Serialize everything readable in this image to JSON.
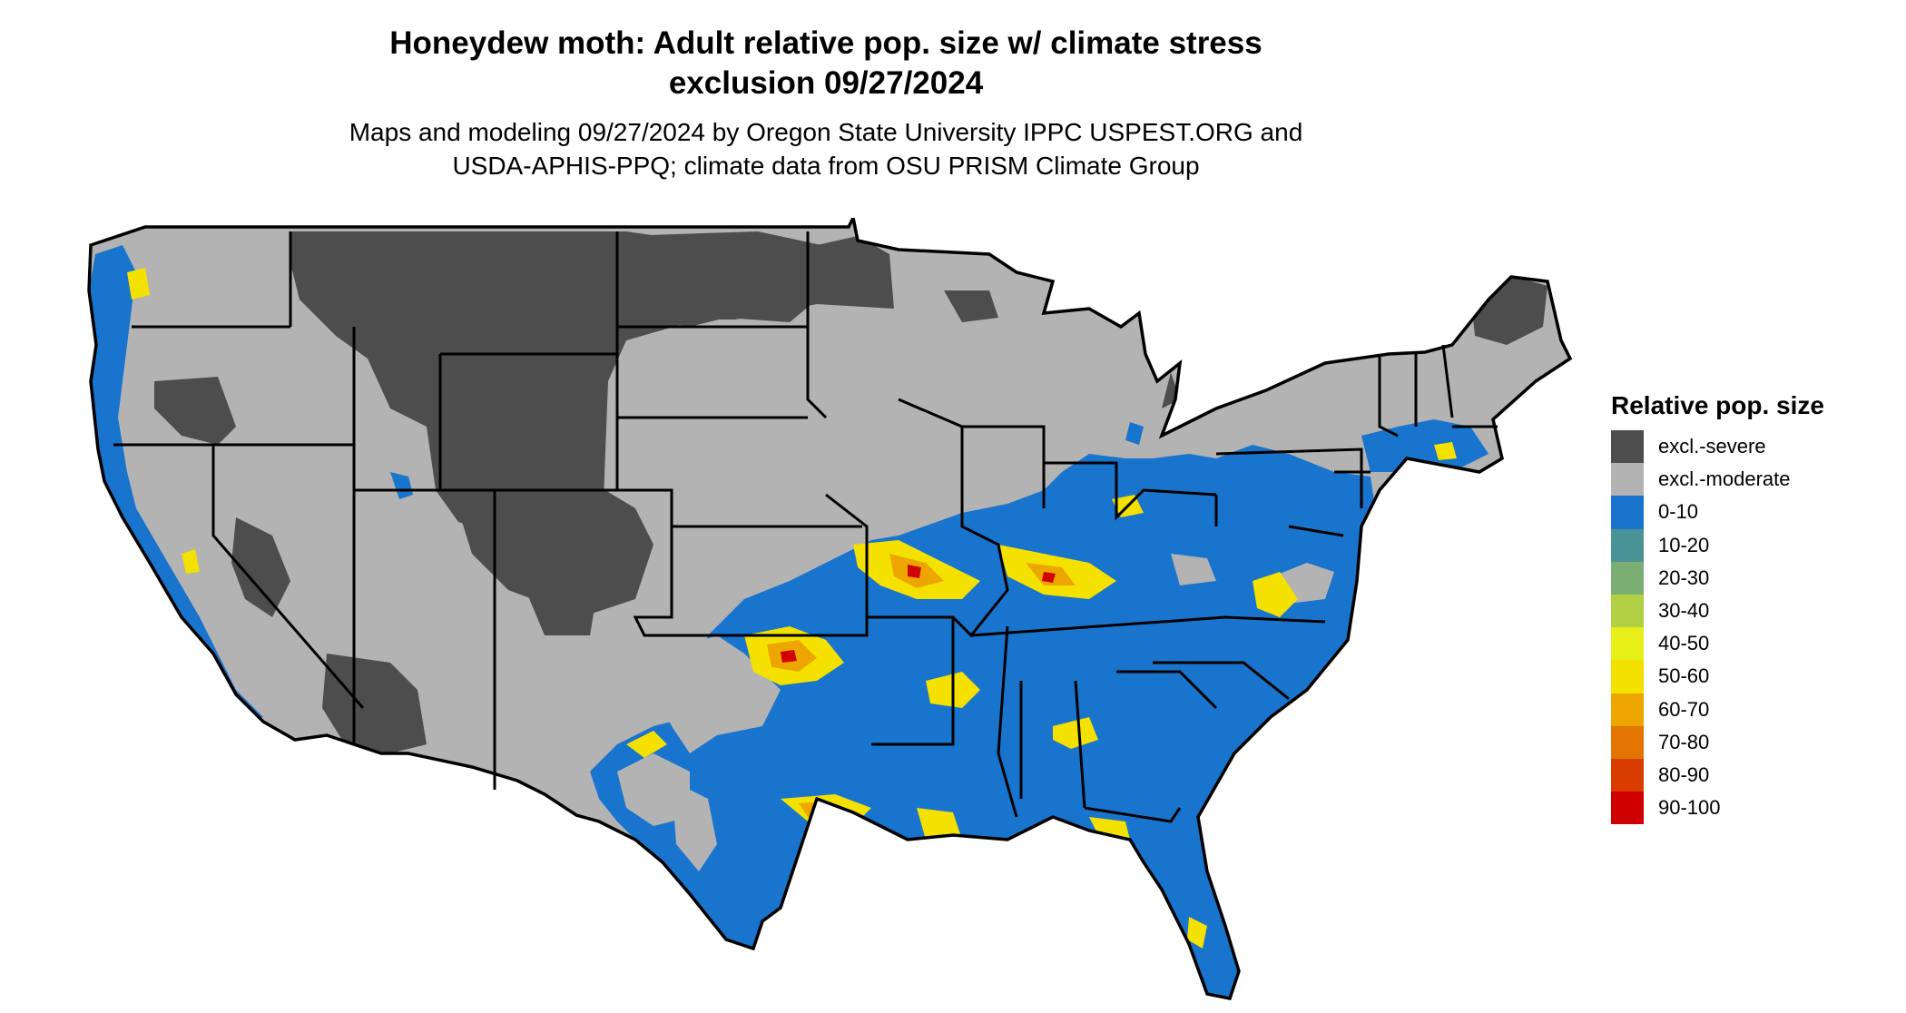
{
  "title": {
    "line1": "Honeydew moth: Adult relative pop. size w/ climate stress",
    "line2": "exclusion 09/27/2024"
  },
  "subtitle": {
    "line1": "Maps and modeling 09/27/2024 by Oregon State University IPPC USPEST.ORG and",
    "line2": "USDA-APHIS-PPQ; climate data from OSU PRISM Climate Group"
  },
  "colors": {
    "excl_severe": "#4d4d4d",
    "excl_moderate": "#b3b3b3",
    "blue_0_10": "#1874cd",
    "hot_yellow": "#f5e100",
    "hot_orange": "#e8a000",
    "hot_red": "#d00000",
    "border": "#000000"
  },
  "legend": {
    "title": "Relative pop. size",
    "items": [
      {
        "label": "excl.-severe",
        "color": "#4d4d4d"
      },
      {
        "label": "excl.-moderate",
        "color": "#b3b3b3"
      },
      {
        "label": "0-10",
        "color": "#1874cd"
      },
      {
        "label": "10-20",
        "color": "#4a9296"
      },
      {
        "label": "20-30",
        "color": "#7aae72"
      },
      {
        "label": "30-40",
        "color": "#b2d045"
      },
      {
        "label": "40-50",
        "color": "#e6ef18"
      },
      {
        "label": "50-60",
        "color": "#f5e100"
      },
      {
        "label": "60-70",
        "color": "#eda600"
      },
      {
        "label": "70-80",
        "color": "#e37600"
      },
      {
        "label": "80-90",
        "color": "#da3c00"
      },
      {
        "label": "90-100",
        "color": "#d00000"
      }
    ]
  }
}
